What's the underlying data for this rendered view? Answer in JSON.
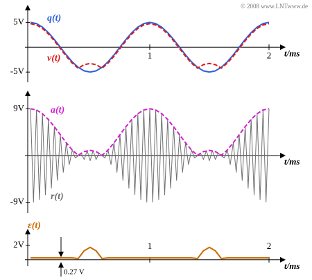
{
  "copyright": "© 2008 www.LNTwww.de",
  "chart_data": [
    {
      "type": "line",
      "x_label": "t/ms",
      "xlim": [
        0,
        2
      ],
      "xticks": [
        1,
        2
      ],
      "ylim": [
        -6.5,
        7
      ],
      "yticks": [
        {
          "value": 5,
          "label": "5V"
        },
        {
          "value": -5,
          "label": "-5V"
        }
      ],
      "x": [
        0,
        0.05,
        0.1,
        0.15,
        0.2,
        0.25,
        0.3,
        0.35,
        0.4,
        0.45,
        0.5,
        0.55,
        0.6,
        0.65,
        0.7,
        0.75,
        0.8,
        0.85,
        0.9,
        0.95,
        1,
        1.05,
        1.1,
        1.15,
        1.2,
        1.25,
        1.3,
        1.35,
        1.4,
        1.45,
        1.5,
        1.55,
        1.6,
        1.65,
        1.7,
        1.75,
        1.8,
        1.85,
        1.9,
        1.95,
        2
      ],
      "series": [
        {
          "name": "q(t)",
          "color": "#3060d8",
          "dashed": false,
          "values": [
            5,
            4.76,
            4.05,
            2.94,
            1.55,
            0,
            -1.55,
            -2.94,
            -4.05,
            -4.76,
            -5,
            -4.76,
            -4.05,
            -2.94,
            -1.55,
            0,
            1.55,
            2.94,
            4.05,
            4.76,
            5,
            4.76,
            4.05,
            2.94,
            1.55,
            0,
            -1.55,
            -2.94,
            -4.05,
            -4.76,
            -5,
            -4.76,
            -4.05,
            -2.94,
            -1.55,
            0,
            1.55,
            2.94,
            4.05,
            4.76,
            5
          ]
        },
        {
          "name": "v(t)",
          "color": "#e01818",
          "dashed": true,
          "values": [
            4.73,
            4.49,
            3.78,
            2.67,
            1.28,
            -0.27,
            -1.82,
            -3.21,
            -4.22,
            -3.51,
            -3.27,
            -3.51,
            -4.22,
            -3.21,
            -1.82,
            -0.27,
            1.28,
            2.67,
            3.78,
            4.49,
            4.73,
            4.49,
            3.78,
            2.67,
            1.28,
            -0.27,
            -1.82,
            -3.21,
            -4.22,
            -3.51,
            -3.27,
            -3.51,
            -4.22,
            -3.21,
            -1.82,
            -0.27,
            1.28,
            2.67,
            3.78,
            4.49,
            4.73
          ]
        }
      ]
    },
    {
      "type": "line",
      "x_label": "t/ms",
      "xlim": [
        0,
        2
      ],
      "ylim": [
        -10.5,
        10.5
      ],
      "yticks": [
        {
          "value": 9,
          "label": "9V"
        },
        {
          "value": -9,
          "label": "-9V"
        }
      ],
      "x": [
        0,
        0.05,
        0.1,
        0.15,
        0.2,
        0.25,
        0.3,
        0.35,
        0.4,
        0.45,
        0.5,
        0.55,
        0.6,
        0.65,
        0.7,
        0.75,
        0.8,
        0.85,
        0.9,
        0.95,
        1,
        1.05,
        1.1,
        1.15,
        1.2,
        1.25,
        1.3,
        1.35,
        1.4,
        1.45,
        1.5,
        1.55,
        1.6,
        1.65,
        1.7,
        1.75,
        1.8,
        1.85,
        1.9,
        1.95,
        2
      ],
      "series": [
        {
          "name": "r(t)",
          "color": "#707070",
          "dashed": false,
          "x": [
            0,
            0.025,
            0.05,
            0.075,
            0.1,
            0.125,
            0.15,
            0.175,
            0.2,
            0.225,
            0.25,
            0.275,
            0.3,
            0.325,
            0.35,
            0.375,
            0.4,
            0.425,
            0.45,
            0.475,
            0.5,
            0.525,
            0.55,
            0.575,
            0.6,
            0.625,
            0.65,
            0.675,
            0.7,
            0.725,
            0.75,
            0.775,
            0.8,
            0.825,
            0.85,
            0.875,
            0.9,
            0.925,
            0.95,
            0.975,
            1,
            1.025,
            1.05,
            1.075,
            1.1,
            1.125,
            1.15,
            1.175,
            1.2,
            1.225,
            1.25,
            1.275,
            1.3,
            1.325,
            1.35,
            1.375,
            1.4,
            1.425,
            1.45,
            1.475,
            1.5,
            1.525,
            1.55,
            1.575,
            1.6,
            1.625,
            1.65,
            1.675,
            1.7,
            1.725,
            1.75,
            1.775,
            1.8,
            1.825,
            1.85,
            1.875,
            1.9,
            1.925,
            1.95,
            1.975,
            2
          ],
          "values": [
            9,
            -8.94,
            8.76,
            -8.46,
            8.05,
            -7.54,
            6.94,
            -6.27,
            5.55,
            -4.78,
            4,
            -3.22,
            2.45,
            -1.73,
            1.06,
            -0.46,
            -0.05,
            0.45,
            -0.76,
            0.94,
            -1,
            0.94,
            -0.76,
            0.45,
            -0.05,
            -0.46,
            1.06,
            -1.73,
            2.45,
            -3.22,
            4,
            -4.78,
            5.55,
            -6.27,
            6.94,
            -7.54,
            8.05,
            -8.46,
            8.76,
            -8.94,
            9,
            -8.94,
            8.76,
            -8.46,
            8.05,
            -7.54,
            6.94,
            -6.27,
            5.55,
            -4.78,
            4,
            -3.22,
            2.45,
            -1.73,
            1.06,
            -0.46,
            -0.05,
            0.45,
            -0.76,
            0.94,
            -1,
            0.94,
            -0.76,
            0.45,
            -0.05,
            -0.46,
            1.06,
            -1.73,
            2.45,
            -3.22,
            4,
            -4.78,
            5.55,
            -6.27,
            6.94,
            -7.54,
            8.05,
            -8.46,
            8.76,
            -8.94,
            9
          ]
        },
        {
          "name": "a(t)",
          "color": "#d020d0",
          "dashed": true,
          "values": [
            9,
            8.76,
            8.05,
            6.94,
            5.55,
            4,
            2.45,
            1.06,
            0.05,
            0.76,
            1,
            0.76,
            0.05,
            1.06,
            2.45,
            4,
            5.55,
            6.94,
            8.05,
            8.76,
            9,
            8.76,
            8.05,
            6.94,
            5.55,
            4,
            2.45,
            1.06,
            0.05,
            0.76,
            1,
            0.76,
            0.05,
            1.06,
            2.45,
            4,
            5.55,
            6.94,
            8.05,
            8.76,
            9
          ]
        }
      ]
    },
    {
      "type": "line",
      "x_label": "t/ms",
      "xlim": [
        0,
        2
      ],
      "xticks": [
        1,
        2
      ],
      "ylim": [
        -0.5,
        3
      ],
      "yticks": [
        {
          "value": 2,
          "label": "2V"
        }
      ],
      "annotation": "0.27 V",
      "x": [
        0,
        0.05,
        0.1,
        0.15,
        0.2,
        0.25,
        0.3,
        0.35,
        0.4,
        0.45,
        0.5,
        0.55,
        0.6,
        0.65,
        0.7,
        0.75,
        0.8,
        0.85,
        0.9,
        0.95,
        1,
        1.05,
        1.1,
        1.15,
        1.2,
        1.25,
        1.3,
        1.35,
        1.4,
        1.45,
        1.5,
        1.55,
        1.6,
        1.65,
        1.7,
        1.75,
        1.8,
        1.85,
        1.9,
        1.95,
        2
      ],
      "series": [
        {
          "name": "ε(t)",
          "color": "#cc6a00",
          "dashed": false,
          "values": [
            0.27,
            0.27,
            0.27,
            0.27,
            0.27,
            0.27,
            0.27,
            0.27,
            0.17,
            1.25,
            1.73,
            1.25,
            0.17,
            0.27,
            0.27,
            0.27,
            0.27,
            0.27,
            0.27,
            0.27,
            0.27,
            0.27,
            0.27,
            0.27,
            0.27,
            0.27,
            0.27,
            0.27,
            0.17,
            1.25,
            1.73,
            1.25,
            0.17,
            0.27,
            0.27,
            0.27,
            0.27,
            0.27,
            0.27,
            0.27,
            0.27
          ]
        }
      ]
    }
  ]
}
